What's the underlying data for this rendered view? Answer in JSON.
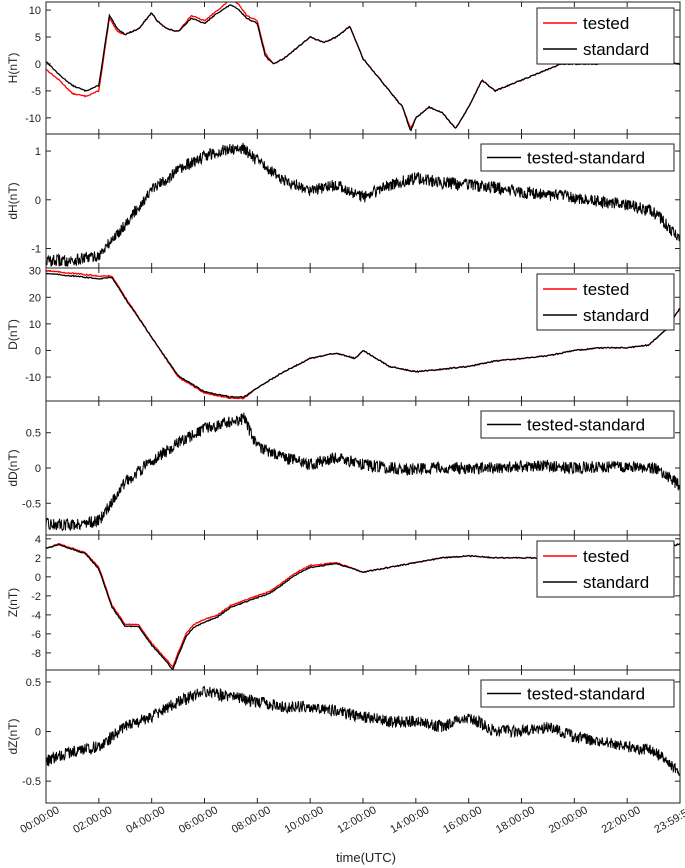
{
  "figure": {
    "xlabel": "time(UTC)",
    "x_ticks": [
      "00:00:00",
      "02:00:00",
      "04:00:00",
      "06:00:00",
      "08:00:00",
      "10:00:00",
      "12:00:00",
      "14:00:00",
      "16:00:00",
      "18:00:00",
      "20:00:00",
      "22:00:00",
      "23:59:59"
    ],
    "colors": {
      "tested": "#ff0000",
      "standard": "#000000",
      "diff": "#000000"
    }
  },
  "chart_data": [
    {
      "type": "line",
      "ylabel": "H(nT)",
      "ylim": [
        -13,
        11.5
      ],
      "yticks": [
        10,
        5,
        0,
        -5,
        -10
      ],
      "legend": {
        "position": "top-right",
        "entries": [
          "tested",
          "standard"
        ]
      },
      "x_hours": [
        0,
        0.5,
        1,
        1.5,
        2,
        2.4,
        2.7,
        3,
        3.5,
        4,
        4.2,
        4.6,
        5,
        5.5,
        6,
        6.5,
        7,
        7.3,
        7.6,
        8,
        8.3,
        8.6,
        9,
        9.5,
        10,
        10.5,
        11,
        11.5,
        12,
        12.5,
        13,
        13.5,
        13.8,
        14,
        14.5,
        15,
        15.5,
        16,
        16.5,
        17,
        17.5,
        18,
        18.5,
        19,
        19.5,
        20,
        21,
        22,
        23,
        24
      ],
      "series": [
        {
          "name": "tested",
          "values": [
            -1,
            -3,
            -5.5,
            -6,
            -5,
            8.5,
            6,
            5.5,
            6.5,
            9.5,
            8,
            6.5,
            6,
            9,
            8,
            10,
            12,
            11,
            9,
            8,
            2,
            0,
            1,
            3,
            5,
            4,
            5,
            7,
            1,
            -2,
            -5,
            -8,
            -12,
            -10,
            -8,
            -9,
            -12,
            -8,
            -3,
            -5,
            -4,
            -3,
            -2,
            -1,
            0,
            0,
            0,
            0.5,
            0.5,
            0
          ]
        },
        {
          "name": "standard",
          "values": [
            0.5,
            -2,
            -4,
            -5,
            -4,
            9,
            6.5,
            5.5,
            6.5,
            9.5,
            8,
            6.5,
            6,
            8.5,
            7.5,
            9.5,
            11,
            10,
            8.5,
            7.5,
            1.5,
            0,
            1,
            3,
            5,
            4,
            5,
            7,
            1,
            -2,
            -5,
            -8,
            -12.5,
            -10,
            -8,
            -9,
            -12,
            -8,
            -3,
            -5,
            -4,
            -3,
            -2,
            -1,
            0,
            0,
            0,
            0.5,
            0.5,
            0
          ]
        }
      ]
    },
    {
      "type": "line",
      "ylabel": "dH(nT)",
      "ylim": [
        -1.4,
        1.35
      ],
      "yticks": [
        1,
        0,
        -1
      ],
      "legend": {
        "position": "top-right",
        "entries": [
          "tested-standard"
        ]
      },
      "x_hours": [
        0,
        1,
        2,
        3,
        4,
        5,
        6,
        7,
        7.5,
        8,
        9,
        10,
        11,
        12,
        13,
        14,
        15,
        16,
        17,
        18,
        19,
        20,
        21,
        22,
        23,
        24
      ],
      "series": [
        {
          "name": "tested-standard",
          "values": [
            -1.25,
            -1.25,
            -1.15,
            -0.5,
            0.2,
            0.6,
            0.9,
            1.05,
            1.05,
            0.8,
            0.4,
            0.2,
            0.3,
            0.05,
            0.3,
            0.45,
            0.35,
            0.3,
            0.25,
            0.15,
            0.1,
            0.05,
            -0.05,
            -0.1,
            -0.25,
            -0.8
          ]
        }
      ]
    },
    {
      "type": "line",
      "ylabel": "D(nT)",
      "ylim": [
        -19,
        31
      ],
      "yticks": [
        30,
        20,
        10,
        0,
        -10
      ],
      "legend": {
        "position": "top-right",
        "entries": [
          "tested",
          "standard"
        ]
      },
      "x_hours": [
        0,
        1,
        2,
        2.5,
        3,
        4,
        5,
        6,
        6.5,
        7,
        7.5,
        8,
        9,
        10,
        11,
        11.7,
        12,
        12.5,
        13,
        14,
        15,
        16,
        17,
        18,
        19,
        20,
        21,
        22,
        22.8,
        23.5,
        24
      ],
      "series": [
        {
          "name": "tested",
          "values": [
            30,
            29,
            28,
            28,
            20,
            5,
            -10,
            -16,
            -17,
            -18,
            -18,
            -14,
            -8,
            -3,
            -1,
            -3,
            0,
            -3,
            -6,
            -8,
            -7,
            -6,
            -4,
            -3,
            -2,
            0,
            1,
            1,
            2,
            8,
            16
          ]
        },
        {
          "name": "standard",
          "values": [
            29,
            28,
            27,
            27.5,
            19.5,
            5,
            -9.5,
            -15.5,
            -16.5,
            -17.5,
            -17.5,
            -14,
            -8,
            -3,
            -1,
            -3,
            0,
            -3,
            -6,
            -8,
            -7,
            -6,
            -4,
            -3,
            -2,
            0,
            1,
            1,
            2,
            8,
            16
          ]
        }
      ]
    },
    {
      "type": "line",
      "ylabel": "dD(nT)",
      "ylim": [
        -0.95,
        0.95
      ],
      "yticks": [
        0.5,
        0,
        -0.5
      ],
      "legend": {
        "position": "top-right",
        "entries": [
          "tested-standard"
        ]
      },
      "x_hours": [
        0,
        1,
        2,
        3,
        4,
        5,
        6,
        7,
        7.5,
        8,
        9,
        10,
        11,
        12,
        13,
        14,
        15,
        16,
        17,
        18,
        19,
        20,
        21,
        22,
        23,
        24
      ],
      "series": [
        {
          "name": "tested-standard",
          "values": [
            -0.8,
            -0.8,
            -0.75,
            -0.2,
            0.1,
            0.35,
            0.55,
            0.65,
            0.7,
            0.3,
            0.15,
            0.05,
            0.15,
            0.05,
            0,
            -0.02,
            0,
            0,
            0,
            0.02,
            0.03,
            0,
            0.02,
            0.02,
            0,
            -0.25
          ]
        }
      ]
    },
    {
      "type": "line",
      "ylabel": "Z(nT)",
      "ylim": [
        -9.8,
        4.4
      ],
      "yticks": [
        4,
        2,
        0,
        -2,
        -4,
        -6,
        -8
      ],
      "legend": {
        "position": "top-right",
        "entries": [
          "tested",
          "standard"
        ]
      },
      "x_hours": [
        0,
        0.5,
        1,
        1.5,
        2,
        2.5,
        3,
        3.5,
        4,
        4.5,
        4.8,
        5,
        5.3,
        5.6,
        6,
        6.5,
        7,
        7.5,
        8,
        8.5,
        9,
        9.5,
        10,
        11,
        12,
        13,
        14,
        15,
        16,
        17,
        18,
        19,
        20,
        21,
        22,
        23,
        24
      ],
      "series": [
        {
          "name": "tested",
          "values": [
            3,
            3.5,
            3,
            2.5,
            1,
            -3,
            -5,
            -5,
            -7,
            -8.5,
            -9.5,
            -8,
            -6,
            -5,
            -4.5,
            -4,
            -3,
            -2.5,
            -2,
            -1.5,
            -0.5,
            0.5,
            1.2,
            1.5,
            0.5,
            1,
            1.5,
            2,
            2.2,
            2,
            2,
            2,
            2,
            2,
            2,
            2.5,
            3.5
          ]
        },
        {
          "name": "standard",
          "values": [
            3,
            3.4,
            2.9,
            2.4,
            0.8,
            -3.2,
            -5.2,
            -5.2,
            -7.2,
            -8.7,
            -9.8,
            -8.3,
            -6.3,
            -5.3,
            -4.8,
            -4.2,
            -3.2,
            -2.7,
            -2.2,
            -1.7,
            -0.7,
            0.3,
            1,
            1.4,
            0.5,
            1,
            1.5,
            2,
            2.2,
            2,
            2,
            2,
            2,
            2,
            2,
            2.5,
            3.5
          ]
        }
      ]
    },
    {
      "type": "line",
      "ylabel": "dZ(nT)",
      "ylim": [
        -0.72,
        0.62
      ],
      "yticks": [
        0.5,
        0,
        -0.5
      ],
      "legend": {
        "position": "top-right",
        "entries": [
          "tested-standard"
        ]
      },
      "x_hours": [
        0,
        1,
        2,
        3,
        4,
        5,
        6,
        7,
        8,
        9,
        10,
        11,
        12,
        13,
        14,
        15,
        16,
        17,
        18,
        19,
        20,
        21,
        22,
        23,
        24
      ],
      "series": [
        {
          "name": "tested-standard",
          "values": [
            -0.3,
            -0.2,
            -0.15,
            0.05,
            0.15,
            0.3,
            0.4,
            0.35,
            0.3,
            0.25,
            0.25,
            0.2,
            0.15,
            0.1,
            0.1,
            0.05,
            0.15,
            0,
            0,
            0.05,
            -0.05,
            -0.1,
            -0.15,
            -0.2,
            -0.4
          ]
        }
      ]
    }
  ]
}
